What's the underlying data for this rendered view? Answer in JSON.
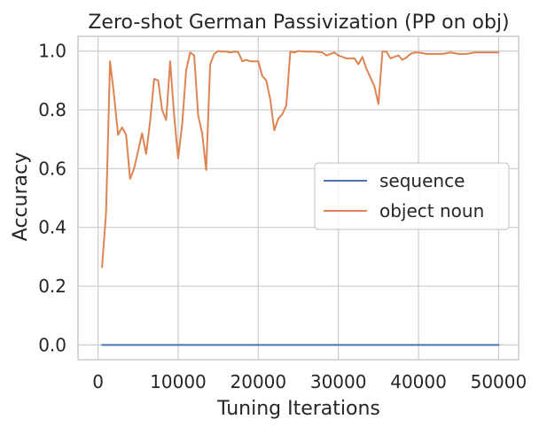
{
  "chart_data": {
    "type": "line",
    "title": "Zero-shot German Passivization (PP on obj)",
    "xlabel": "Tuning Iterations",
    "ylabel": "Accuracy",
    "xlim": [
      -2500,
      52500
    ],
    "ylim": [
      -0.05,
      1.05
    ],
    "xticks": [
      0,
      10000,
      20000,
      30000,
      40000,
      50000
    ],
    "xtick_labels": [
      "0",
      "10000",
      "20000",
      "30000",
      "40000",
      "50000"
    ],
    "yticks": [
      0.0,
      0.2,
      0.4,
      0.6,
      0.8,
      1.0
    ],
    "ytick_labels": [
      "0.0",
      "0.2",
      "0.4",
      "0.6",
      "0.8",
      "1.0"
    ],
    "grid": true,
    "legend_position": "center-right",
    "series": [
      {
        "name": "sequence",
        "color": "#4c72b0",
        "x": [
          500,
          50000
        ],
        "y": [
          0.0,
          0.0
        ]
      },
      {
        "name": "object noun",
        "color": "#dd8452",
        "x": [
          500,
          1000,
          1500,
          2000,
          2500,
          3000,
          3500,
          4000,
          4500,
          5000,
          5500,
          6000,
          6500,
          7000,
          7500,
          8000,
          8500,
          9000,
          9500,
          10000,
          10500,
          11000,
          11500,
          12000,
          12500,
          13000,
          13500,
          14000,
          14500,
          15000,
          15500,
          16000,
          16500,
          17000,
          17500,
          18000,
          18500,
          19000,
          19500,
          20000,
          20500,
          21000,
          21500,
          22000,
          22500,
          23000,
          23500,
          24000,
          24500,
          25000,
          26000,
          27000,
          28000,
          28500,
          29000,
          29500,
          30000,
          31000,
          32000,
          32500,
          33000,
          33500,
          34000,
          34500,
          35000,
          35500,
          36000,
          36500,
          37000,
          37500,
          38000,
          38500,
          39000,
          39500,
          40000,
          41000,
          42000,
          43000,
          44000,
          45000,
          45500,
          46000,
          47000,
          48000,
          49000,
          50000
        ],
        "y": [
          0.265,
          0.45,
          0.965,
          0.85,
          0.715,
          0.74,
          0.715,
          0.565,
          0.6,
          0.66,
          0.72,
          0.65,
          0.76,
          0.905,
          0.9,
          0.8,
          0.765,
          0.965,
          0.78,
          0.635,
          0.75,
          0.935,
          0.995,
          0.985,
          0.78,
          0.72,
          0.595,
          0.955,
          0.99,
          1.0,
          0.998,
          0.998,
          0.995,
          0.998,
          0.996,
          0.965,
          0.97,
          0.965,
          0.965,
          0.965,
          0.915,
          0.9,
          0.835,
          0.73,
          0.77,
          0.785,
          0.815,
          0.998,
          0.995,
          1.0,
          0.998,
          0.998,
          0.995,
          0.985,
          0.99,
          0.995,
          0.985,
          0.975,
          0.975,
          0.955,
          0.98,
          0.94,
          0.91,
          0.88,
          0.82,
          0.998,
          0.998,
          0.975,
          0.98,
          0.985,
          0.97,
          0.978,
          0.99,
          0.995,
          0.995,
          0.99,
          0.99,
          0.99,
          0.995,
          0.99,
          0.99,
          0.99,
          0.995,
          0.995,
          0.995,
          0.995
        ]
      }
    ]
  }
}
